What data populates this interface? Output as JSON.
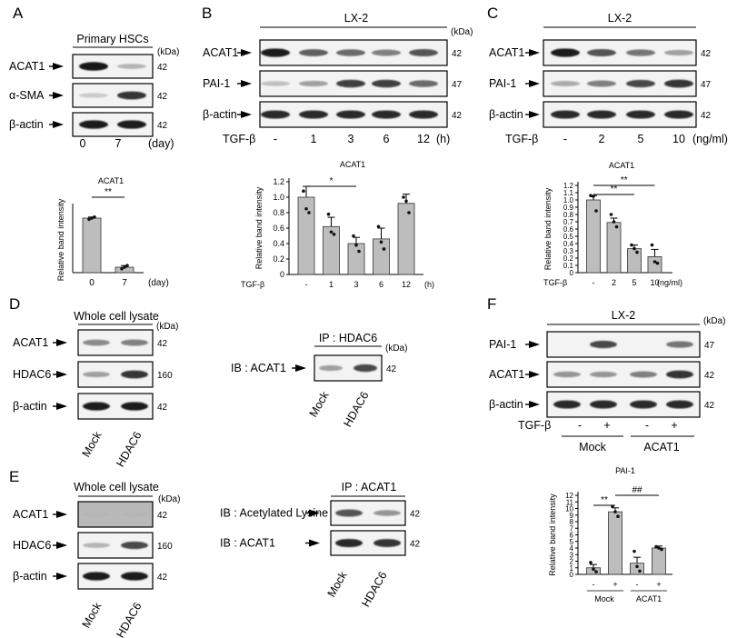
{
  "panels": {
    "A": {
      "letter": "A",
      "header": "Primary HSCs",
      "kda": "(kDa)",
      "rows": [
        {
          "label": "ACAT1",
          "kda": "42"
        },
        {
          "label": "α-SMA",
          "kda": "42"
        },
        {
          "label": "β-actin",
          "kda": "42"
        }
      ],
      "lanes": [
        "0",
        "7"
      ],
      "lane_unit": "(day)"
    },
    "B": {
      "letter": "B",
      "header": "LX-2",
      "kda": "(kDa)",
      "rows": [
        {
          "label": "ACAT1",
          "kda": "42"
        },
        {
          "label": "PAI-1",
          "kda": "47"
        },
        {
          "label": "β-actin",
          "kda": "42"
        }
      ],
      "treat_label": "TGF-β",
      "lanes": [
        "-",
        "1",
        "3",
        "6",
        "12"
      ],
      "lane_unit": "(h)"
    },
    "C": {
      "letter": "C",
      "header": "LX-2",
      "rows": [
        {
          "label": "ACAT1",
          "kda": "42"
        },
        {
          "label": "PAI-1",
          "kda": "47"
        },
        {
          "label": "β-actin",
          "kda": "42"
        }
      ],
      "treat_label": "TGF-β",
      "lanes": [
        "-",
        "2",
        "5",
        "10"
      ],
      "lane_unit": "(ng/ml)"
    },
    "D": {
      "letter": "D",
      "header": "Whole cell lysate",
      "kda": "(kDa)",
      "rows": [
        {
          "label": "ACAT1",
          "kda": "42"
        },
        {
          "label": "HDAC6",
          "kda": "160"
        },
        {
          "label": "β-actin",
          "kda": "42"
        }
      ],
      "lanes": [
        "Mock",
        "HDAC6"
      ],
      "ip_header": "IP : HDAC6",
      "ip_kda": "(kDa)",
      "ip_row": {
        "label": "IB : ACAT1",
        "kda": "42"
      },
      "ip_lanes": [
        "Mock",
        "HDAC6"
      ]
    },
    "E": {
      "letter": "E",
      "header": "Whole cell lysate",
      "kda": "(kDa)",
      "rows": [
        {
          "label": "ACAT1",
          "kda": "42"
        },
        {
          "label": "HDAC6",
          "kda": "160"
        },
        {
          "label": "β-actin",
          "kda": "42"
        }
      ],
      "lanes": [
        "Mock",
        "HDAC6"
      ],
      "ip_header": "IP : ACAT1",
      "ip_rows": [
        {
          "label": "IB : Acetylated Lysine",
          "kda": "42"
        },
        {
          "label": "IB : ACAT1",
          "kda": "42"
        }
      ],
      "ip_lanes": [
        "Mock",
        "HDAC6"
      ]
    },
    "F": {
      "letter": "F",
      "header": "LX-2",
      "kda": "(kDa)",
      "rows": [
        {
          "label": "PAI-1",
          "kda": "47"
        },
        {
          "label": "ACAT1",
          "kda": "42"
        },
        {
          "label": "β-actin",
          "kda": "42"
        }
      ],
      "treat_label": "TGF-β",
      "treat_signs": [
        "-",
        "+",
        "-",
        "+"
      ],
      "groups": [
        "Mock",
        "ACAT1"
      ]
    }
  },
  "chart_data": [
    {
      "id": "A",
      "type": "bar",
      "title": "ACAT1",
      "ylabel": "Relative band intensity",
      "categories": [
        "0",
        "7"
      ],
      "xunit": "(day)",
      "values": [
        1.0,
        0.1
      ],
      "errors": [
        0.02,
        0.03
      ],
      "points": [
        [
          0.98,
          1.0,
          1.02
        ],
        [
          0.07,
          0.1,
          0.13
        ]
      ],
      "significance": [
        {
          "from": 0,
          "to": 1,
          "label": "**"
        }
      ],
      "ylim": [
        0,
        1.2
      ]
    },
    {
      "id": "B",
      "type": "bar",
      "title": "ACAT1",
      "ylabel": "Relative band intensity",
      "xprefix": "TGF-β",
      "categories": [
        "-",
        "1",
        "3",
        "6",
        "12"
      ],
      "xunit": "(h)",
      "values": [
        1.0,
        0.62,
        0.4,
        0.46,
        0.92
      ],
      "errors": [
        0.14,
        0.12,
        0.08,
        0.14,
        0.12
      ],
      "points": [
        [
          1.08,
          0.85,
          0.8
        ],
        [
          0.78,
          0.55,
          0.52
        ],
        [
          0.5,
          0.38,
          0.3
        ],
        [
          0.62,
          0.42,
          0.33
        ],
        [
          1.0,
          0.95,
          0.8
        ]
      ],
      "significance": [
        {
          "from": 0,
          "to": 2,
          "label": "*"
        }
      ],
      "yticks": [
        "0",
        "0.2",
        "0.4",
        "0.6",
        "0.8",
        "1.0",
        "1.2"
      ],
      "ylim": [
        0,
        1.2
      ]
    },
    {
      "id": "C",
      "type": "bar",
      "title": "ACAT1",
      "ylabel": "Relative band intensity",
      "xprefix": "TGF-β",
      "categories": [
        "-",
        "2",
        "5",
        "10"
      ],
      "xunit": "(ng/ml)",
      "values": [
        1.0,
        0.69,
        0.33,
        0.22
      ],
      "errors": [
        0.06,
        0.06,
        0.05,
        0.1
      ],
      "points": [
        [
          1.06,
          1.05,
          0.85
        ],
        [
          0.8,
          0.7,
          0.63
        ],
        [
          0.38,
          0.33,
          0.28
        ],
        [
          0.38,
          0.15,
          0.13
        ]
      ],
      "significance": [
        {
          "from": 0,
          "to": 3,
          "label": "**"
        },
        {
          "from": 0,
          "to": 2,
          "label": "**"
        }
      ],
      "yticks": [
        "0",
        "0.1",
        "0.2",
        "0.3",
        "0.4",
        "0.5",
        "0.6",
        "0.7",
        "0.8",
        "0.9",
        "1.0",
        "1.1",
        "1.2"
      ],
      "ylim": [
        0,
        1.2
      ]
    },
    {
      "id": "F",
      "type": "bar",
      "title": "PAI-1",
      "ylabel": "Relative band intensity",
      "categories": [
        "-",
        "+",
        "-",
        "+"
      ],
      "groups": [
        "Mock",
        "ACAT1"
      ],
      "values": [
        1.0,
        9.5,
        1.7,
        4.0
      ],
      "errors": [
        0.5,
        0.6,
        0.9,
        0.3
      ],
      "points": [
        [
          1.8,
          0.8,
          0.4
        ],
        [
          10.3,
          9.5,
          8.8
        ],
        [
          3.5,
          1.2,
          0.5
        ],
        [
          4.2,
          4.0,
          3.8
        ]
      ],
      "significance": [
        {
          "from": 0,
          "to": 1,
          "label": "**"
        },
        {
          "from": 1,
          "to": 3,
          "label": "##"
        }
      ],
      "yticks": [
        "0",
        "1",
        "2",
        "3",
        "4",
        "5",
        "6",
        "7",
        "8",
        "9",
        "10",
        "11",
        "12"
      ],
      "ylim": [
        0,
        12
      ]
    }
  ]
}
